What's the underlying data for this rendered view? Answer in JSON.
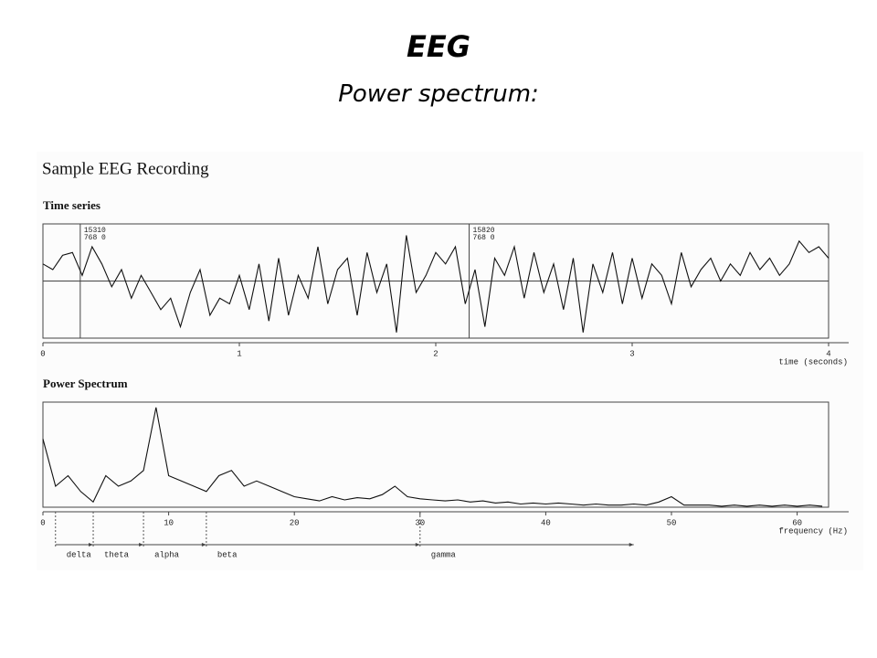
{
  "slide": {
    "title": "EEG",
    "subtitle": "Power spectrum:",
    "figure_title": "Sample EEG Recording"
  },
  "chart_data": [
    {
      "type": "line",
      "title": "Time series",
      "x_label": "time (seconds)",
      "color": "#111111",
      "x": [
        0,
        0.05,
        0.1,
        0.15,
        0.2,
        0.25,
        0.3,
        0.35,
        0.4,
        0.45,
        0.5,
        0.55,
        0.6,
        0.65,
        0.7,
        0.75,
        0.8,
        0.85,
        0.9,
        0.95,
        1,
        1.05,
        1.1,
        1.15,
        1.2,
        1.25,
        1.3,
        1.35,
        1.4,
        1.45,
        1.5,
        1.55,
        1.6,
        1.65,
        1.7,
        1.75,
        1.8,
        1.85,
        1.9,
        1.95,
        2,
        2.05,
        2.1,
        2.15,
        2.2,
        2.25,
        2.3,
        2.35,
        2.4,
        2.45,
        2.5,
        2.55,
        2.6,
        2.65,
        2.7,
        2.75,
        2.8,
        2.85,
        2.9,
        2.95,
        3,
        3.05,
        3.1,
        3.15,
        3.2,
        3.25,
        3.3,
        3.35,
        3.4,
        3.45,
        3.5,
        3.55,
        3.6,
        3.65,
        3.7,
        3.75,
        3.8,
        3.85,
        3.9,
        3.95,
        4
      ],
      "values": [
        0.3,
        0.2,
        0.45,
        0.5,
        0.1,
        0.6,
        0.3,
        -0.1,
        0.2,
        -0.3,
        0.1,
        -0.2,
        -0.5,
        -0.3,
        -0.8,
        -0.2,
        0.2,
        -0.6,
        -0.3,
        -0.4,
        0.1,
        -0.5,
        0.3,
        -0.7,
        0.4,
        -0.6,
        0.1,
        -0.3,
        0.6,
        -0.4,
        0.2,
        0.4,
        -0.6,
        0.5,
        -0.2,
        0.3,
        -0.9,
        0.8,
        -0.2,
        0.1,
        0.5,
        0.3,
        0.6,
        -0.4,
        0.2,
        -0.8,
        0.4,
        0.1,
        0.6,
        -0.3,
        0.5,
        -0.2,
        0.3,
        -0.5,
        0.4,
        -0.9,
        0.3,
        -0.2,
        0.5,
        -0.4,
        0.4,
        -0.3,
        0.3,
        0.1,
        -0.4,
        0.5,
        -0.1,
        0.2,
        0.4,
        0,
        0.3,
        0.1,
        0.5,
        0.2,
        0.4,
        0.1,
        0.3,
        0.7,
        0.5,
        0.6,
        0.4
      ],
      "xlim": [
        0,
        4
      ],
      "xticks": [
        0,
        1,
        2,
        3,
        4
      ],
      "ylim": [
        -1,
        1
      ],
      "zero_line": true,
      "markers": [
        {
          "x": 0.19,
          "lines": [
            "15310",
            "768 0"
          ]
        },
        {
          "x": 2.17,
          "lines": [
            "15820",
            "768 0"
          ]
        }
      ]
    },
    {
      "type": "line",
      "title": "Power Spectrum",
      "x_label": "frequency (Hz)",
      "color": "#111111",
      "x": [
        0,
        1,
        2,
        3,
        4,
        5,
        6,
        7,
        8,
        9,
        10,
        11,
        12,
        13,
        14,
        15,
        16,
        17,
        18,
        19,
        20,
        21,
        22,
        23,
        24,
        25,
        26,
        27,
        28,
        29,
        30,
        31,
        32,
        33,
        34,
        35,
        36,
        37,
        38,
        39,
        40,
        41,
        42,
        43,
        44,
        45,
        46,
        47,
        48,
        49,
        50,
        51,
        52,
        53,
        54,
        55,
        56,
        57,
        58,
        59,
        60,
        61,
        62
      ],
      "values": [
        0.65,
        0.2,
        0.3,
        0.15,
        0.05,
        0.3,
        0.2,
        0.25,
        0.35,
        0.95,
        0.3,
        0.25,
        0.2,
        0.15,
        0.3,
        0.35,
        0.2,
        0.25,
        0.2,
        0.15,
        0.1,
        0.08,
        0.06,
        0.1,
        0.07,
        0.09,
        0.08,
        0.12,
        0.2,
        0.1,
        0.08,
        0.07,
        0.06,
        0.07,
        0.05,
        0.06,
        0.04,
        0.05,
        0.03,
        0.04,
        0.03,
        0.04,
        0.03,
        0.02,
        0.03,
        0.02,
        0.02,
        0.03,
        0.02,
        0.05,
        0.1,
        0.02,
        0.02,
        0.02,
        0.01,
        0.02,
        0.01,
        0.02,
        0.01,
        0.02,
        0.01,
        0.02,
        0.01
      ],
      "xlim": [
        0,
        62.5
      ],
      "xticks": [
        0,
        10,
        20,
        30,
        40,
        50,
        60
      ],
      "ylim": [
        0,
        1
      ],
      "bands": [
        {
          "label": "delta",
          "start": 1,
          "end": 4
        },
        {
          "label": "theta",
          "start": 4,
          "end": 8
        },
        {
          "label": "alpha",
          "start": 8,
          "end": 13
        },
        {
          "label": "beta",
          "start": 13,
          "end": 30
        },
        {
          "label": "gamma",
          "start": 30,
          "end": 47
        }
      ]
    }
  ]
}
